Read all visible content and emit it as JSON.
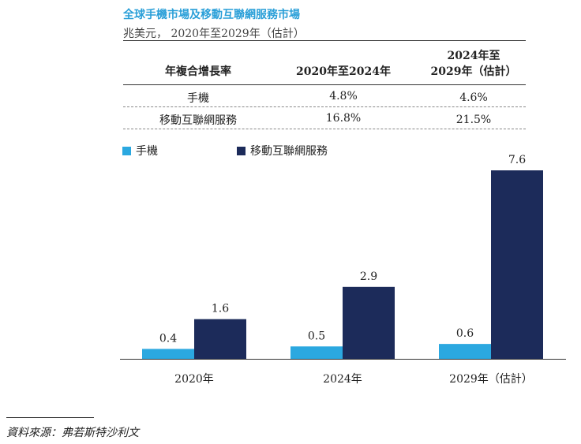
{
  "header": {
    "title": "全球手機市場及移動互聯網服務市場",
    "subtitle": "兆美元， 2020年至2029年（估計）"
  },
  "cagr_table": {
    "headers": [
      "年複合增長率",
      "2020年至2024年",
      "2024年至",
      "2029年（估計）"
    ],
    "rows": [
      {
        "label": "手機",
        "v1": "4.8%",
        "v2": "4.6%"
      },
      {
        "label": "移動互聯網服務",
        "v1": "16.8%",
        "v2": "21.5%"
      }
    ]
  },
  "legend": {
    "items": [
      {
        "label": "手機",
        "color": "#2ba8e0"
      },
      {
        "label": "移動互聯網服務",
        "color": "#1c2b5a"
      }
    ]
  },
  "chart_data": {
    "type": "bar",
    "title": "全球手機市場及移動互聯網服務市場",
    "ylabel": "兆美元",
    "xlabel": "",
    "categories": [
      "2020年",
      "2024年",
      "2029年（估計）"
    ],
    "series": [
      {
        "name": "手機",
        "values": [
          0.4,
          0.5,
          0.6
        ],
        "labels": [
          "0.4",
          "0.5",
          "0.6"
        ],
        "color": "#2ba8e0"
      },
      {
        "name": "移動互聯網服務",
        "values": [
          1.6,
          2.9,
          7.6
        ],
        "labels": [
          "1.6",
          "2.9",
          "7.6"
        ],
        "color": "#1c2b5a"
      }
    ],
    "ylim": [
      0,
      7.6
    ]
  },
  "source": {
    "text": "資料來源：弗若斯特沙利文"
  }
}
